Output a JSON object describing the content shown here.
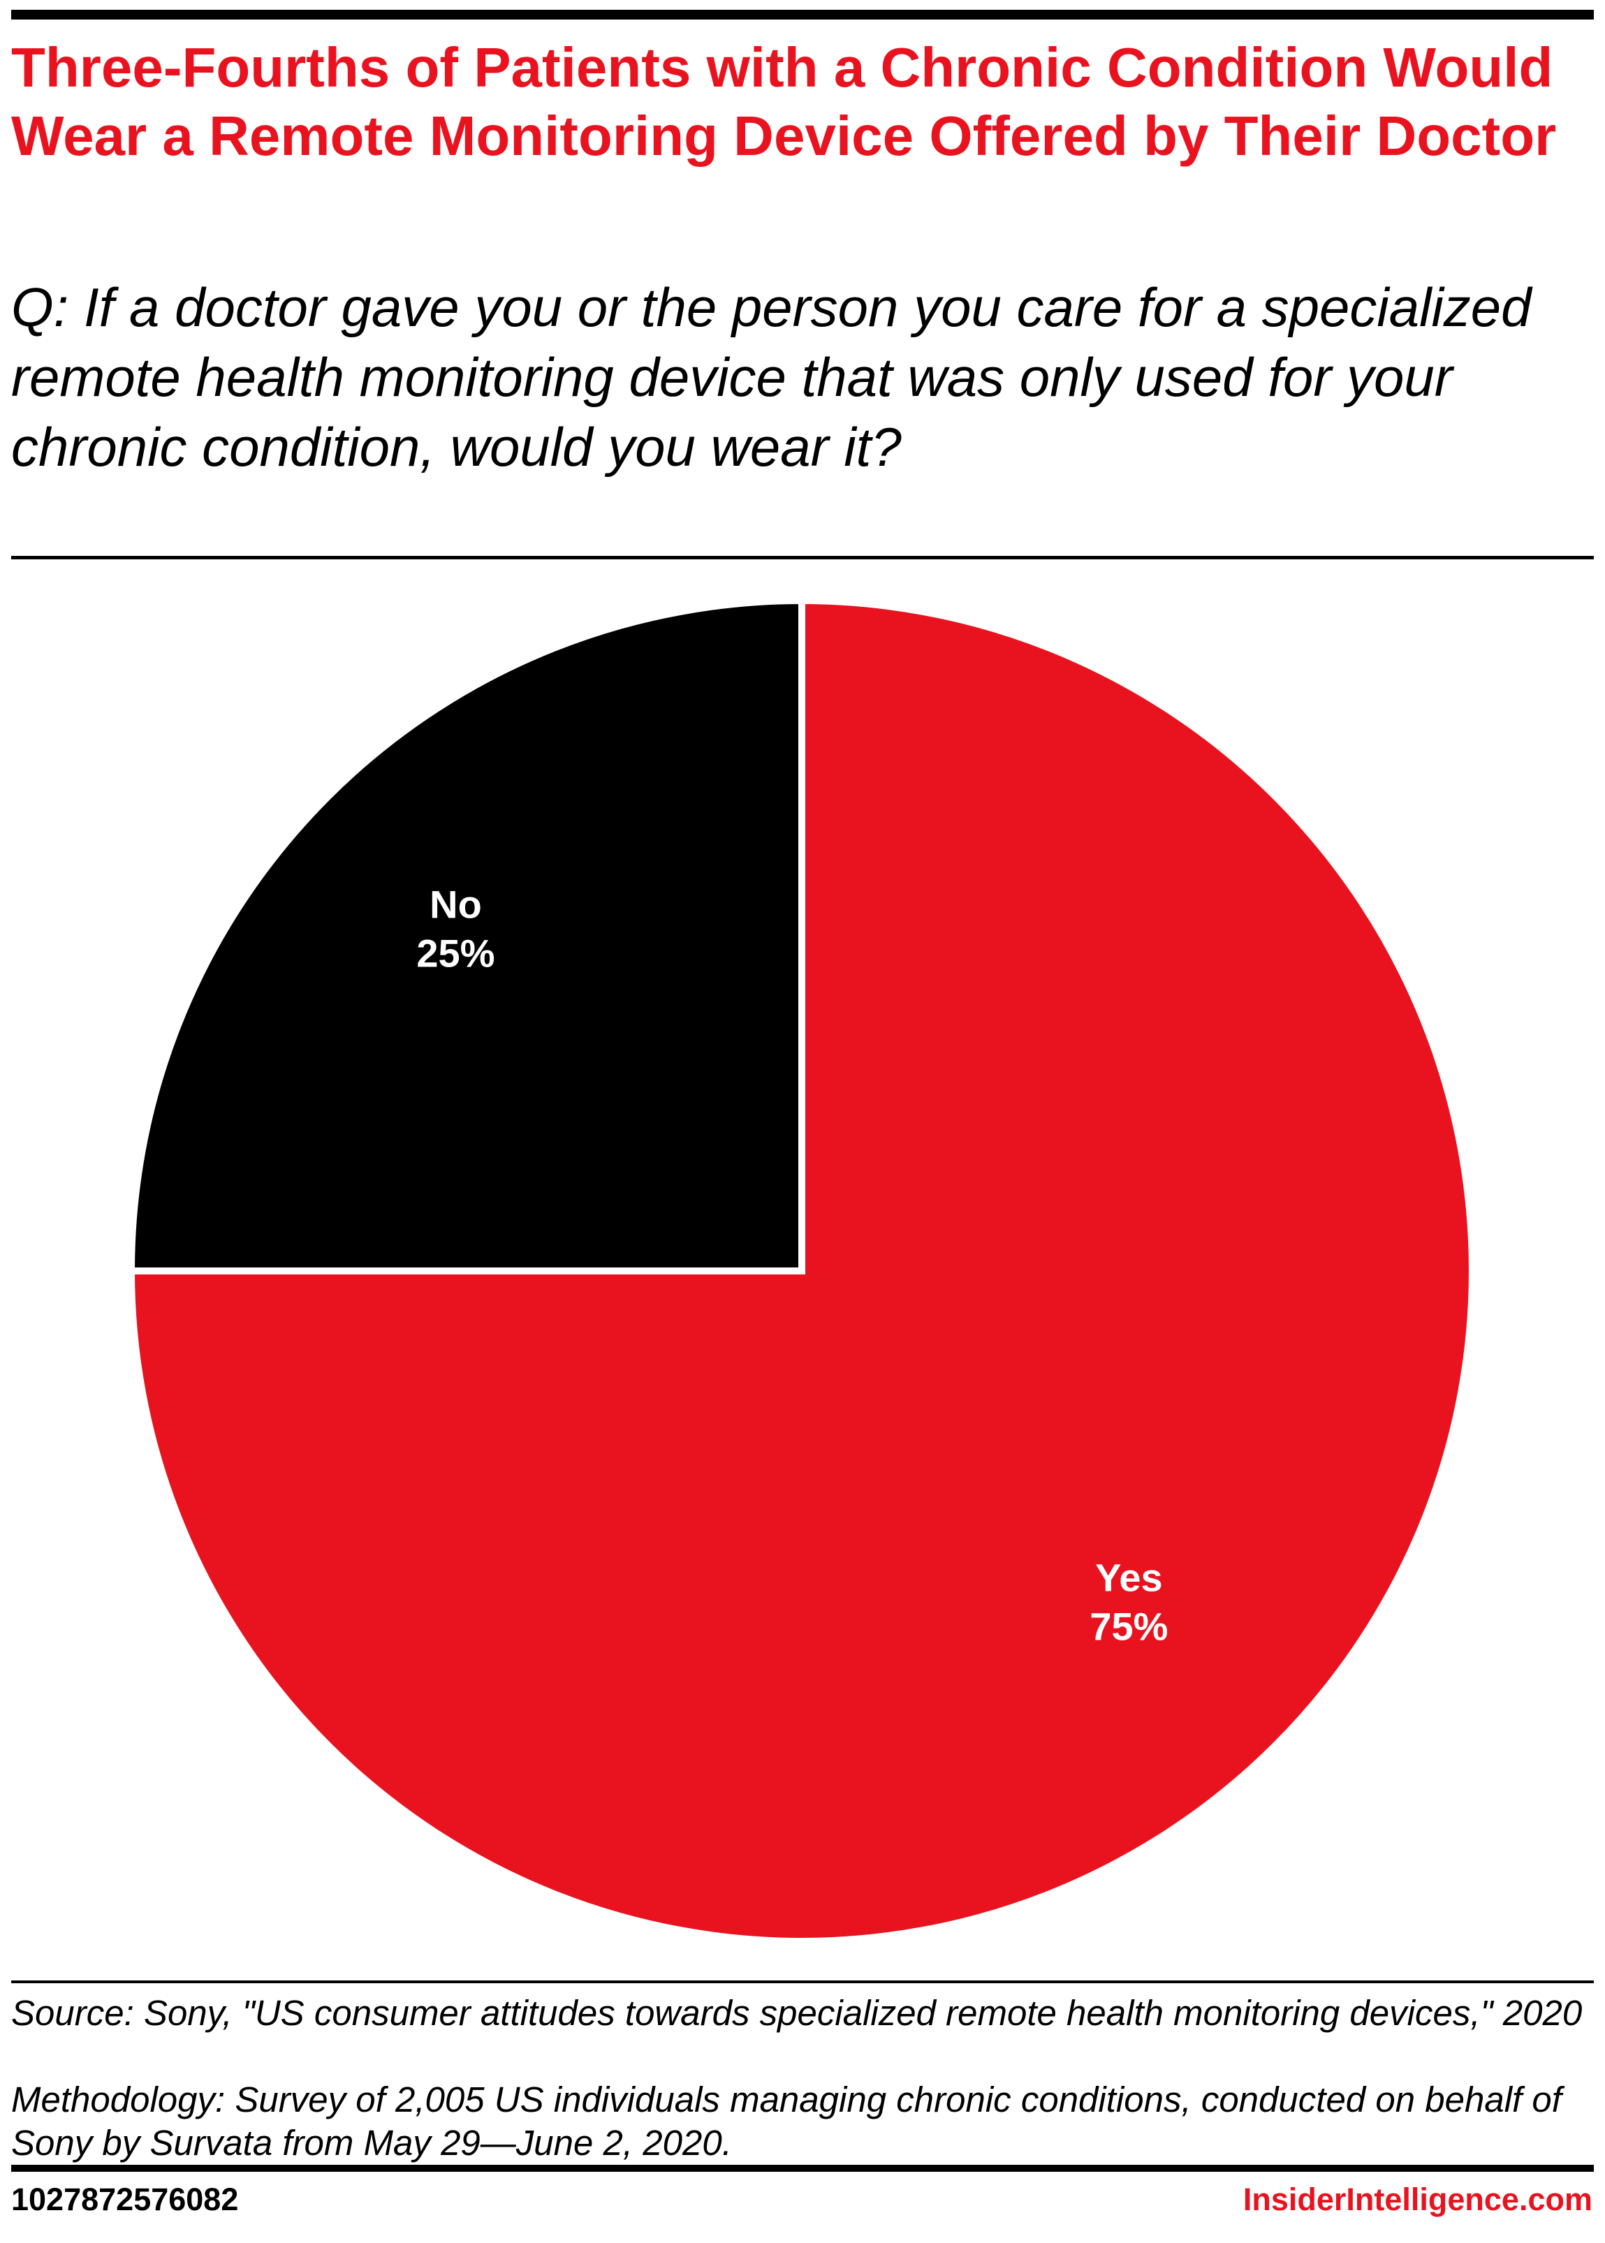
{
  "title": "Three-Fourths of Patients with a Chronic Condition Would Wear a Remote Monitoring Device Offered by Their Doctor",
  "subtitle": "Q: If a doctor gave you or the person you care for a specialized remote health monitoring device that was only used for your chronic condition, would you wear it?",
  "chart_data": {
    "type": "pie",
    "start_angle_deg": 0,
    "direction": "clockwise",
    "slices": [
      {
        "label": "Yes",
        "value": 75,
        "value_label": "75%",
        "color": "#e8131f"
      },
      {
        "label": "No",
        "value": 25,
        "value_label": "25%",
        "color": "#000000"
      }
    ]
  },
  "footer": {
    "source": "Source: Sony, \"US consumer attitudes towards specialized remote health monitoring devices,\" 2020",
    "methodology": "Methodology: Survey of 2,005 US individuals managing chronic conditions, conducted on behalf of Sony by Survata from May 29—June 2, 2020.",
    "chart_id": "1027872576082",
    "brand": "InsiderIntelligence.com"
  }
}
